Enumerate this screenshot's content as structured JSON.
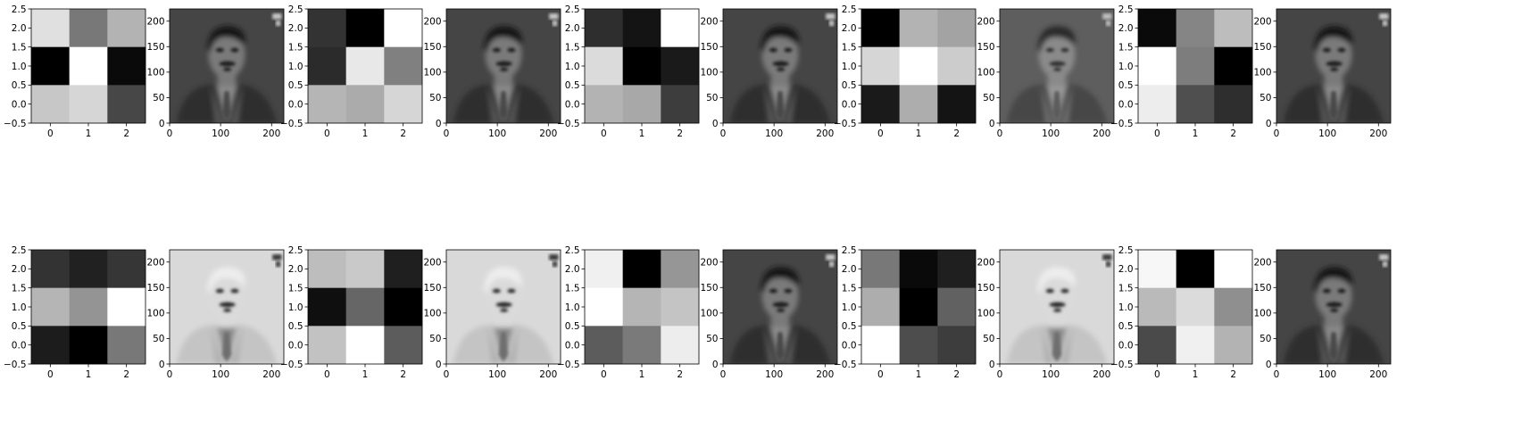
{
  "chart_data": {
    "type": "heatmap",
    "layout": {
      "rows": 2,
      "columns": 10
    },
    "kernel_axes": {
      "xticks": [
        0,
        1,
        2
      ],
      "xtick_labels": [
        "0",
        "1",
        "2"
      ],
      "yticks": [
        -0.5,
        0.0,
        0.5,
        1.0,
        1.5,
        2.0,
        2.5
      ],
      "ytick_labels": [
        "−0.5",
        "0.0",
        "0.5",
        "1.0",
        "1.5",
        "2.0",
        "2.5"
      ],
      "xlim": [
        -0.5,
        2.5
      ],
      "ylim": [
        2.5,
        -0.5
      ]
    },
    "image_axes": {
      "xticks": [
        0,
        100,
        200
      ],
      "xtick_labels": [
        "0",
        "100",
        "200"
      ],
      "yticks": [
        0,
        50,
        100,
        150,
        200
      ],
      "ytick_labels": [
        "0",
        "50",
        "100",
        "150",
        "200"
      ],
      "xlim": [
        0,
        224
      ],
      "ylim": [
        224,
        0
      ]
    },
    "kernels": [
      [
        [
          0.88,
          0.47,
          0.7
        ],
        [
          0.0,
          1.0,
          0.04
        ],
        [
          0.78,
          0.84,
          0.28
        ]
      ],
      [
        [
          0.2,
          0.0,
          1.0
        ],
        [
          0.17,
          0.91,
          0.5
        ],
        [
          0.71,
          0.67,
          0.84
        ]
      ],
      [
        [
          0.18,
          0.08,
          1.0
        ],
        [
          0.86,
          0.0,
          0.1
        ],
        [
          0.7,
          0.66,
          0.24
        ]
      ],
      [
        [
          0.0,
          0.7,
          0.64
        ],
        [
          0.84,
          1.0,
          0.8
        ],
        [
          0.1,
          0.68,
          0.08
        ]
      ],
      [
        [
          0.04,
          0.52,
          0.74
        ],
        [
          1.0,
          0.49,
          0.0
        ],
        [
          0.93,
          0.31,
          0.18
        ]
      ],
      [
        [
          0.2,
          0.13,
          0.21
        ],
        [
          0.71,
          0.58,
          1.0
        ],
        [
          0.11,
          0.0,
          0.47
        ]
      ],
      [
        [
          0.74,
          0.79,
          0.12
        ],
        [
          0.06,
          0.4,
          0.0
        ],
        [
          0.76,
          1.0,
          0.36
        ]
      ],
      [
        [
          0.94,
          0.0,
          0.59
        ],
        [
          1.0,
          0.71,
          0.77
        ],
        [
          0.36,
          0.48,
          0.93
        ]
      ],
      [
        [
          0.47,
          0.04,
          0.12
        ],
        [
          0.68,
          0.0,
          0.38
        ],
        [
          1.0,
          0.3,
          0.24
        ]
      ],
      [
        [
          0.97,
          0.0,
          1.0
        ],
        [
          0.73,
          0.86,
          0.56
        ],
        [
          0.29,
          0.94,
          0.7
        ]
      ]
    ],
    "filtered_images": [
      {
        "tone": "dark"
      },
      {
        "tone": "dark"
      },
      {
        "tone": "dark"
      },
      {
        "tone": "muted"
      },
      {
        "tone": "dark"
      },
      {
        "tone": "inverted"
      },
      {
        "tone": "inverted"
      },
      {
        "tone": "dark"
      },
      {
        "tone": "inverted"
      },
      {
        "tone": "dark"
      }
    ],
    "colormap": "gray",
    "grid": false
  }
}
